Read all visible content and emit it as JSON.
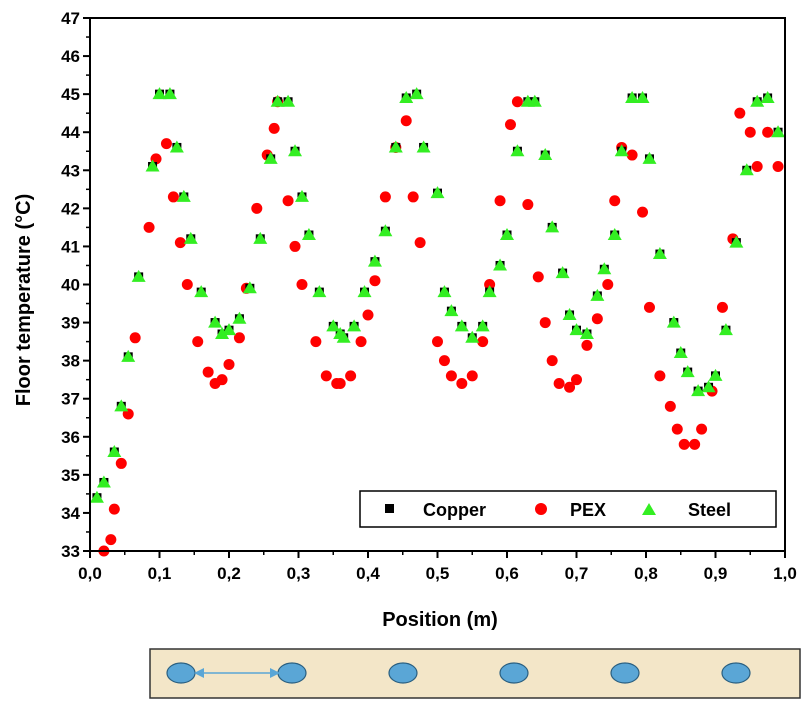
{
  "chart_data": {
    "type": "scatter",
    "xlabel": "Position (m)",
    "ylabel": "Floor temperature (°C)",
    "xlim": [
      0.0,
      1.0
    ],
    "ylim": [
      33,
      47
    ],
    "x_ticks": [
      "0,0",
      "0,1",
      "0,2",
      "0,3",
      "0,4",
      "0,5",
      "0,6",
      "0,7",
      "0,8",
      "0,9",
      "1,0"
    ],
    "y_ticks": [
      "33",
      "34",
      "35",
      "36",
      "37",
      "38",
      "39",
      "40",
      "41",
      "42",
      "43",
      "44",
      "45",
      "46",
      "47"
    ],
    "legend_position": "bottom-right",
    "series": [
      {
        "name": "Copper",
        "marker": "square",
        "color": "#000000",
        "x": [
          0.01,
          0.02,
          0.035,
          0.045,
          0.055,
          0.07,
          0.09,
          0.1,
          0.115,
          0.125,
          0.135,
          0.145,
          0.16,
          0.18,
          0.19,
          0.2,
          0.215,
          0.23,
          0.245,
          0.26,
          0.27,
          0.285,
          0.295,
          0.305,
          0.315,
          0.33,
          0.35,
          0.36,
          0.365,
          0.38,
          0.395,
          0.41,
          0.425,
          0.44,
          0.455,
          0.47,
          0.48,
          0.5,
          0.51,
          0.52,
          0.535,
          0.55,
          0.565,
          0.575,
          0.59,
          0.6,
          0.615,
          0.63,
          0.64,
          0.655,
          0.665,
          0.68,
          0.69,
          0.7,
          0.715,
          0.73,
          0.74,
          0.755,
          0.765,
          0.78,
          0.795,
          0.805,
          0.82,
          0.84,
          0.85,
          0.86,
          0.875,
          0.89,
          0.9,
          0.915,
          0.93,
          0.945,
          0.96,
          0.975,
          0.99
        ],
        "y": [
          34.4,
          34.8,
          35.6,
          36.8,
          38.1,
          40.2,
          43.1,
          45.0,
          45.0,
          43.6,
          42.3,
          41.2,
          39.8,
          39.0,
          38.7,
          38.8,
          39.1,
          39.9,
          41.2,
          43.3,
          44.8,
          44.8,
          43.5,
          42.3,
          41.3,
          39.8,
          38.9,
          38.7,
          38.6,
          38.9,
          39.8,
          40.6,
          41.4,
          43.6,
          44.9,
          45.0,
          43.6,
          42.4,
          39.8,
          39.3,
          38.9,
          38.6,
          38.9,
          39.8,
          40.5,
          41.3,
          43.5,
          44.8,
          44.8,
          43.4,
          41.5,
          40.3,
          39.2,
          38.8,
          38.7,
          39.7,
          40.4,
          41.3,
          43.5,
          44.9,
          44.9,
          43.3,
          40.8,
          39.0,
          38.2,
          37.7,
          37.2,
          37.3,
          37.6,
          38.8,
          41.1,
          43.0,
          44.8,
          44.9,
          44.0
        ]
      },
      {
        "name": "PEX",
        "marker": "circle",
        "color": "#ff0000",
        "x": [
          0.02,
          0.03,
          0.035,
          0.045,
          0.055,
          0.065,
          0.085,
          0.095,
          0.11,
          0.12,
          0.13,
          0.14,
          0.155,
          0.17,
          0.18,
          0.19,
          0.2,
          0.215,
          0.225,
          0.24,
          0.255,
          0.265,
          0.27,
          0.285,
          0.295,
          0.305,
          0.325,
          0.34,
          0.355,
          0.36,
          0.375,
          0.39,
          0.4,
          0.41,
          0.425,
          0.44,
          0.455,
          0.465,
          0.475,
          0.5,
          0.51,
          0.52,
          0.535,
          0.55,
          0.565,
          0.575,
          0.59,
          0.605,
          0.615,
          0.63,
          0.645,
          0.655,
          0.665,
          0.675,
          0.69,
          0.7,
          0.715,
          0.73,
          0.745,
          0.755,
          0.765,
          0.78,
          0.795,
          0.805,
          0.82,
          0.835,
          0.845,
          0.855,
          0.87,
          0.88,
          0.895,
          0.91,
          0.925,
          0.935,
          0.95,
          0.96,
          0.975,
          0.99
        ],
        "y": [
          33.0,
          33.3,
          34.1,
          35.3,
          36.6,
          38.6,
          41.5,
          43.3,
          43.7,
          42.3,
          41.1,
          40.0,
          38.5,
          37.7,
          37.4,
          37.5,
          37.9,
          38.6,
          39.9,
          42.0,
          43.4,
          44.1,
          44.8,
          42.2,
          41.0,
          40.0,
          38.5,
          37.6,
          37.4,
          37.4,
          37.6,
          38.5,
          39.2,
          40.1,
          42.3,
          43.6,
          44.3,
          42.3,
          41.1,
          38.5,
          38.0,
          37.6,
          37.4,
          37.6,
          38.5,
          40.0,
          42.2,
          44.2,
          44.8,
          42.1,
          40.2,
          39.0,
          38.0,
          37.4,
          37.3,
          37.5,
          38.4,
          39.1,
          40.0,
          42.2,
          43.6,
          43.4,
          41.9,
          39.4,
          37.6,
          36.8,
          36.2,
          35.8,
          35.8,
          36.2,
          37.2,
          39.4,
          41.2,
          44.5,
          44.0,
          43.1,
          44.0,
          43.1
        ]
      },
      {
        "name": "Steel",
        "marker": "triangle",
        "color": "#33ee22",
        "x": [
          0.01,
          0.02,
          0.035,
          0.045,
          0.055,
          0.07,
          0.09,
          0.1,
          0.115,
          0.125,
          0.135,
          0.145,
          0.16,
          0.18,
          0.19,
          0.2,
          0.215,
          0.23,
          0.245,
          0.26,
          0.27,
          0.285,
          0.295,
          0.305,
          0.315,
          0.33,
          0.35,
          0.36,
          0.365,
          0.38,
          0.395,
          0.41,
          0.425,
          0.44,
          0.455,
          0.47,
          0.48,
          0.5,
          0.51,
          0.52,
          0.535,
          0.55,
          0.565,
          0.575,
          0.59,
          0.6,
          0.615,
          0.63,
          0.64,
          0.655,
          0.665,
          0.68,
          0.69,
          0.7,
          0.715,
          0.73,
          0.74,
          0.755,
          0.765,
          0.78,
          0.795,
          0.805,
          0.82,
          0.84,
          0.85,
          0.86,
          0.875,
          0.89,
          0.9,
          0.915,
          0.93,
          0.945,
          0.96,
          0.975,
          0.99
        ],
        "y": [
          34.4,
          34.8,
          35.6,
          36.8,
          38.1,
          40.2,
          43.1,
          45.0,
          45.0,
          43.6,
          42.3,
          41.2,
          39.8,
          39.0,
          38.7,
          38.8,
          39.1,
          39.9,
          41.2,
          43.3,
          44.8,
          44.8,
          43.5,
          42.3,
          41.3,
          39.8,
          38.9,
          38.7,
          38.6,
          38.9,
          39.8,
          40.6,
          41.4,
          43.6,
          44.9,
          45.0,
          43.6,
          42.4,
          39.8,
          39.3,
          38.9,
          38.6,
          38.9,
          39.8,
          40.5,
          41.3,
          43.5,
          44.8,
          44.8,
          43.4,
          41.5,
          40.3,
          39.2,
          38.8,
          38.7,
          39.7,
          40.4,
          41.3,
          43.5,
          44.9,
          44.9,
          43.3,
          40.8,
          39.0,
          38.2,
          37.7,
          37.2,
          37.3,
          37.6,
          38.8,
          41.1,
          43.0,
          44.8,
          44.9,
          44.0
        ]
      }
    ]
  },
  "pipe_strip": {
    "pipe_count": 6,
    "strip_color": "#f3e6c8",
    "pipe_color": "#5aa6d6",
    "arrow_color": "#5aa6d6"
  }
}
